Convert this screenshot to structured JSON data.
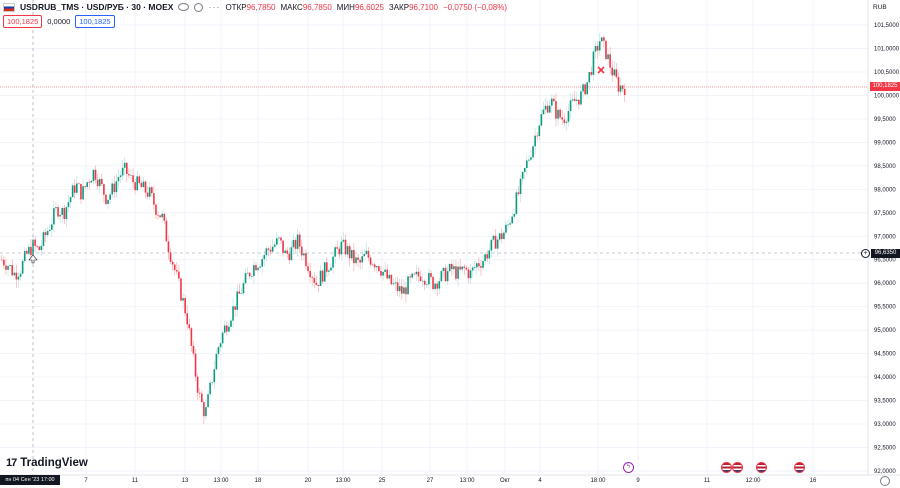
{
  "legend": {
    "symbol": "USDRUB_TMS · USD/РУБ · 30 · MOEX",
    "open_label": "ОТКР",
    "open": "96,7850",
    "high_label": "МАКС",
    "high": "96,7850",
    "low_label": "МИН",
    "low": "96,6025",
    "close_label": "ЗАКР",
    "close": "96,7100",
    "change": "−0,0750 (−0,08%)",
    "sell_price": "100,1825",
    "spread": "0,0000",
    "buy_price": "100,1825",
    "more": "···"
  },
  "brand": {
    "logo_mark": "17",
    "name": "TradingView"
  },
  "price_axis": {
    "currency": "RUB",
    "ticks": [
      "101,5000",
      "101,0000",
      "100,5000",
      "100,0000",
      "99,5000",
      "99,0000",
      "98,5000",
      "98,0000",
      "97,5000",
      "97,0000",
      "96,5000",
      "96,0000",
      "95,5000",
      "95,0000",
      "94,5000",
      "94,0000",
      "93,5000",
      "93,0000",
      "92,5000",
      "92,0000"
    ],
    "current_price": "100,1825",
    "crosshair_price": "96,6350"
  },
  "time_axis": {
    "crosshair_time": "пн 04 Сен '23  17:00",
    "ticks": [
      "7",
      "11",
      "13",
      "13:00",
      "18",
      "20",
      "13:00",
      "25",
      "27",
      "13:00",
      "Окт",
      "4",
      "18:00",
      "9",
      "11",
      "12:00",
      "16"
    ]
  },
  "colors": {
    "up": "#089981",
    "down": "#f23645",
    "up_light": "#b2dfdb",
    "down_light": "#faa1a4",
    "marker": "#f23645"
  },
  "chart_data": {
    "type": "candlestick",
    "ylim": [
      92.0,
      101.8
    ],
    "series_close": [
      96.5,
      96.4,
      96.2,
      96.3,
      96.6,
      96.8,
      96.7,
      97.0,
      97.3,
      97.6,
      97.5,
      97.8,
      98.1,
      97.9,
      98.2,
      98.4,
      98.1,
      97.8,
      98.0,
      98.3,
      98.4,
      98.2,
      98.1,
      98.0,
      97.9,
      97.6,
      97.4,
      96.8,
      96.3,
      95.8,
      95.3,
      94.4,
      93.6,
      93.2,
      93.9,
      94.6,
      95.0,
      95.3,
      95.6,
      95.9,
      96.2,
      96.4,
      96.5,
      96.7,
      96.8,
      96.9,
      96.6,
      96.7,
      96.9,
      96.6,
      96.3,
      96.0,
      96.2,
      96.4,
      96.6,
      96.8,
      96.7,
      96.5,
      96.4,
      96.6,
      96.5,
      96.4,
      96.2,
      96.0,
      95.9,
      95.8,
      96.0,
      96.1,
      96.2,
      96.1,
      96.0,
      96.1,
      96.2,
      96.3,
      96.2,
      96.3,
      96.2,
      96.4,
      96.5,
      96.7,
      96.9,
      97.0,
      97.2,
      97.6,
      98.0,
      98.5,
      98.9,
      99.4,
      99.7,
      99.9,
      99.6,
      99.5,
      99.7,
      99.9,
      100.0,
      100.3,
      100.8,
      101.2,
      100.9,
      100.5,
      100.2,
      100.18
    ],
    "marker_price": 100.5,
    "crosshair_price": 96.635,
    "current_price": 100.1825
  }
}
